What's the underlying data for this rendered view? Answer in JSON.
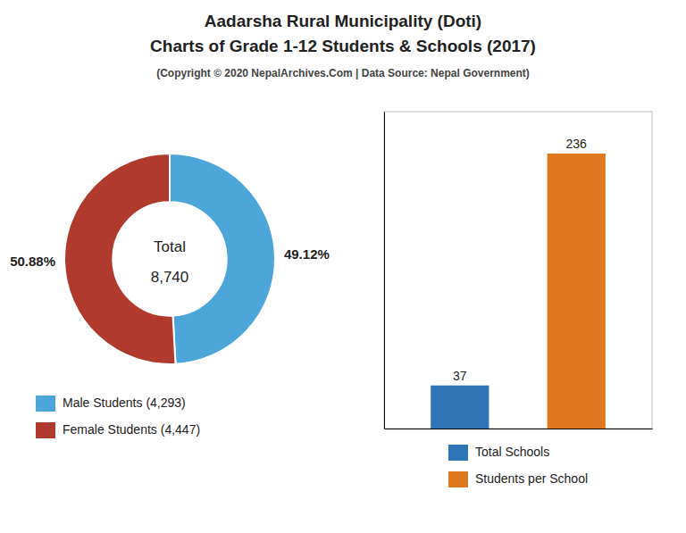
{
  "title": [
    "Aadarsha Rural Municipality (Doti)",
    "Charts of Grade 1-12 Students & Schools (2017)"
  ],
  "subtitle": "(Copyright © 2020 NepalArchives.Com | Data Source: Nepal Government)",
  "chart_data": [
    {
      "type": "pie",
      "categories": [
        "Male Students (4,293)",
        "Female Students (4,447)"
      ],
      "values": [
        49.12,
        50.88
      ],
      "value_labels": [
        "49.12%",
        "50.88%"
      ],
      "colors": [
        "#4da6d9",
        "#b03a2e"
      ],
      "data_labels": true,
      "legend": "lower left",
      "annotations": [
        {
          "text": "Total"
        },
        {
          "text": "8,740",
          "value": 8740
        }
      ]
    },
    {
      "type": "bar",
      "categories": [
        "Total Schools",
        "Students per School"
      ],
      "values": [
        37,
        236
      ],
      "colors": [
        "#2e75b6",
        "#e07820"
      ],
      "data_labels": true,
      "ylim": [
        0,
        272
      ],
      "yticks": [],
      "tick_labels": false,
      "legend": "bottom"
    }
  ]
}
